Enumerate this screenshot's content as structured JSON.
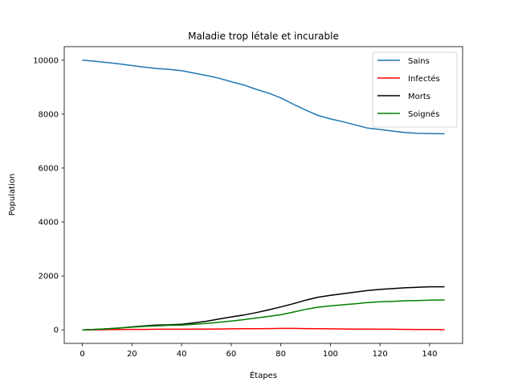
{
  "chart_data": {
    "type": "line",
    "title": "Maladie trop létale et incurable",
    "xlabel": "Étapes",
    "ylabel": "Population",
    "xlim": [
      -7.3,
      153.3
    ],
    "ylim": [
      -500,
      10500
    ],
    "xticks": [
      0,
      20,
      40,
      60,
      80,
      100,
      120,
      140
    ],
    "yticks": [
      0,
      2000,
      4000,
      6000,
      8000,
      10000
    ],
    "grid": false,
    "legend_position": "top-right",
    "x": [
      0,
      5,
      10,
      15,
      20,
      25,
      30,
      35,
      40,
      45,
      50,
      55,
      60,
      65,
      70,
      75,
      80,
      85,
      90,
      95,
      100,
      105,
      110,
      115,
      120,
      125,
      130,
      135,
      140,
      146
    ],
    "series": [
      {
        "name": "Sains",
        "color": "#1f77b4",
        "values": [
          10000,
          9960,
          9910,
          9860,
          9800,
          9740,
          9690,
          9660,
          9610,
          9520,
          9430,
          9330,
          9200,
          9080,
          8920,
          8780,
          8600,
          8370,
          8150,
          7950,
          7820,
          7720,
          7600,
          7480,
          7430,
          7370,
          7320,
          7290,
          7280,
          7270
        ]
      },
      {
        "name": "Infectés",
        "color": "#ff0000",
        "values": [
          0,
          5,
          10,
          15,
          20,
          20,
          25,
          25,
          25,
          30,
          30,
          35,
          40,
          45,
          45,
          50,
          55,
          55,
          50,
          45,
          40,
          35,
          30,
          30,
          25,
          25,
          20,
          15,
          15,
          10
        ]
      },
      {
        "name": "Morts",
        "color": "#000000",
        "values": [
          0,
          20,
          40,
          70,
          110,
          150,
          180,
          190,
          210,
          260,
          320,
          400,
          480,
          550,
          640,
          740,
          850,
          970,
          1100,
          1210,
          1280,
          1340,
          1400,
          1460,
          1500,
          1530,
          1560,
          1580,
          1600,
          1600
        ]
      },
      {
        "name": "Soignés",
        "color": "#008000",
        "values": [
          0,
          20,
          40,
          70,
          100,
          130,
          150,
          170,
          180,
          210,
          240,
          280,
          330,
          380,
          440,
          500,
          560,
          660,
          760,
          840,
          890,
          930,
          970,
          1010,
          1040,
          1060,
          1080,
          1090,
          1100,
          1110
        ]
      }
    ]
  }
}
